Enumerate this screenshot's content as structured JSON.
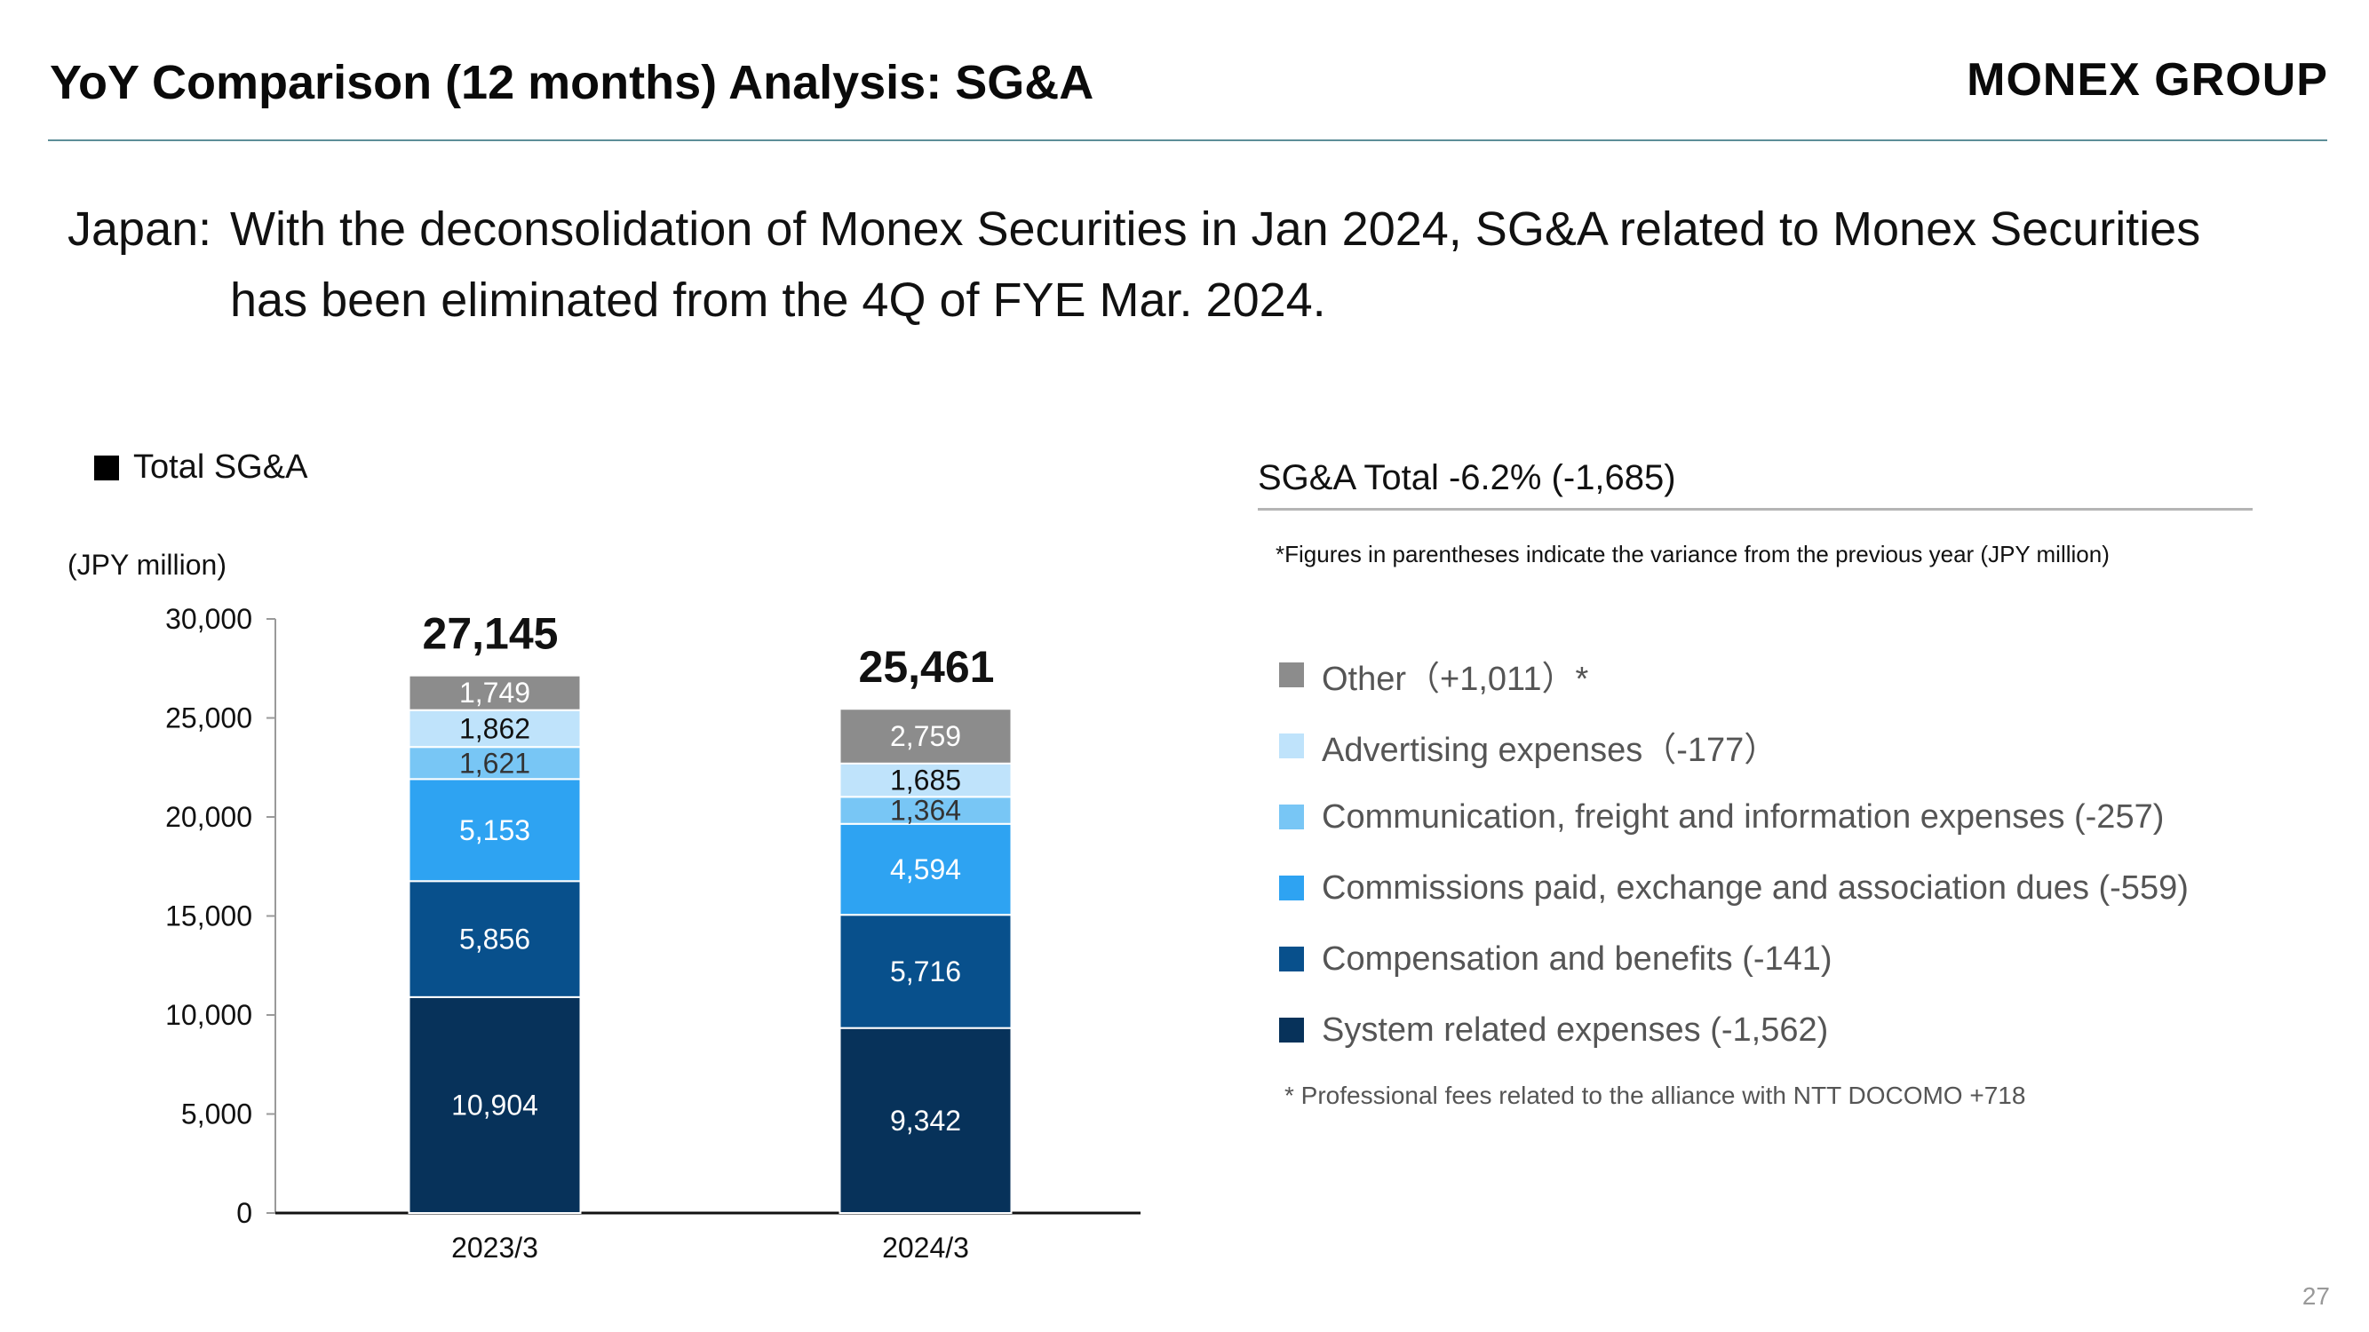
{
  "header": {
    "title": "YoY Comparison (12 months) Analysis: SG&A",
    "logo_text": "MONEX GROUP"
  },
  "headline": {
    "prefix": "Japan:",
    "line1": "With the deconsolidation of Monex Securities in Jan 2024, SG&A related to Monex Securities",
    "line2": "has been eliminated from the 4Q of FYE Mar. 2024."
  },
  "legend_total_label": "Total SG&A",
  "chart_data": {
    "type": "bar",
    "stacked": true,
    "unit_label": "(JPY million)",
    "categories": [
      "2023/3",
      "2024/3"
    ],
    "totals": [
      27145,
      25461
    ],
    "total_labels": [
      "27,145",
      "25,461"
    ],
    "ylim": [
      0,
      30000
    ],
    "yticks": [
      0,
      5000,
      10000,
      15000,
      20000,
      25000,
      30000
    ],
    "ytick_labels": [
      "0",
      "5,000",
      "10,000",
      "15,000",
      "20,000",
      "25,000",
      "30,000"
    ],
    "series": [
      {
        "name": "System related expenses",
        "color": "#07325a",
        "label_color": "#ffffff",
        "values": [
          10904,
          9342
        ],
        "value_labels": [
          "10,904",
          "9,342"
        ]
      },
      {
        "name": "Compensation and benefits",
        "color": "#08508c",
        "label_color": "#ffffff",
        "values": [
          5856,
          5716
        ],
        "value_labels": [
          "5,856",
          "5,716"
        ]
      },
      {
        "name": "Commissions paid, exchange and association dues",
        "color": "#2ea3f2",
        "label_color": "#ffffff",
        "values": [
          5153,
          4594
        ],
        "value_labels": [
          "5,153",
          "4,594"
        ]
      },
      {
        "name": "Communication, freight and information expenses",
        "color": "#78c6f5",
        "label_color": "#333333",
        "values": [
          1621,
          1364
        ],
        "value_labels": [
          "1,621",
          "1,364"
        ]
      },
      {
        "name": "Advertising expenses",
        "color": "#bfe3fb",
        "label_color": "#111111",
        "values": [
          1862,
          1685
        ],
        "value_labels": [
          "1,862",
          "1,685"
        ]
      },
      {
        "name": "Other",
        "color": "#8c8c8c",
        "label_color": "#ffffff",
        "values": [
          1749,
          2759
        ],
        "value_labels": [
          "1,749",
          "2,759"
        ]
      }
    ]
  },
  "right_panel": {
    "title": "SG&A Total -6.2% (-1,685)",
    "note": "*Figures in parentheses indicate the variance from the previous year (JPY million)",
    "legend": [
      {
        "label": "Other（+1,011）*",
        "color": "#8c8c8c"
      },
      {
        "label": "Advertising expenses（-177）",
        "color": "#bfe3fb"
      },
      {
        "label": "Communication, freight and information expenses (-257)",
        "color": "#78c6f5"
      },
      {
        "label": "Commissions paid, exchange and association dues (-559)",
        "color": "#2ea3f2"
      },
      {
        "label": "Compensation and benefits (-141)",
        "color": "#08508c"
      },
      {
        "label": "System related expenses (-1,562)",
        "color": "#07325a"
      }
    ],
    "footnote": "*  Professional fees related to the alliance with NTT DOCOMO +718"
  },
  "page_number": "27"
}
